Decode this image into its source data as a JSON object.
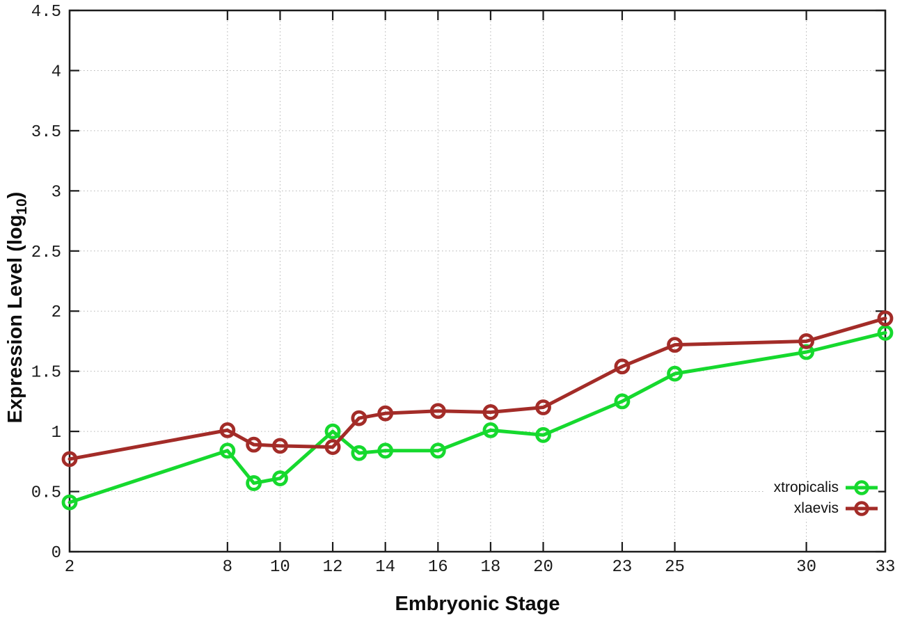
{
  "figure": {
    "background": "#ffffff"
  },
  "axes": {
    "x_title": "Embryonic Stage",
    "y_title_prefix": "Expression Level (log",
    "y_title_sub": "10",
    "y_title_suffix": ")"
  },
  "legend": {
    "items": [
      "xtropicalis",
      "xlaevis"
    ]
  },
  "chart_data": {
    "type": "line",
    "title": "",
    "xlabel": "Embryonic Stage",
    "ylabel": "Expression Level (log_10)",
    "x": [
      2,
      8,
      9,
      10,
      12,
      13,
      14,
      16,
      18,
      20,
      23,
      25,
      30,
      33
    ],
    "series": [
      {
        "name": "xtropicalis",
        "color": "#16d92e",
        "marker": "open-circle",
        "values": [
          0.41,
          0.84,
          0.57,
          0.61,
          1.0,
          0.82,
          0.84,
          0.84,
          1.01,
          0.97,
          1.25,
          1.48,
          1.66,
          1.82
        ]
      },
      {
        "name": "xlaevis",
        "color": "#a32c28",
        "marker": "open-circle",
        "values": [
          0.77,
          1.01,
          0.89,
          0.88,
          0.87,
          1.11,
          1.15,
          1.17,
          1.16,
          1.2,
          1.54,
          1.72,
          1.75,
          1.94
        ]
      }
    ],
    "xlim": [
      2,
      33
    ],
    "ylim": [
      0,
      4.5
    ],
    "xticks": [
      2,
      8,
      10,
      12,
      14,
      16,
      18,
      20,
      23,
      25,
      30,
      33
    ],
    "yticks": [
      0,
      0.5,
      1,
      1.5,
      2,
      2.5,
      3,
      3.5,
      4,
      4.5
    ],
    "grid": true,
    "grid_style": "dotted",
    "legend_position": "inside-right-lower",
    "style": {
      "grid_color": "#b3b3b3",
      "border_color": "#1c1c1c",
      "text_color": "#1a1a1a"
    }
  }
}
